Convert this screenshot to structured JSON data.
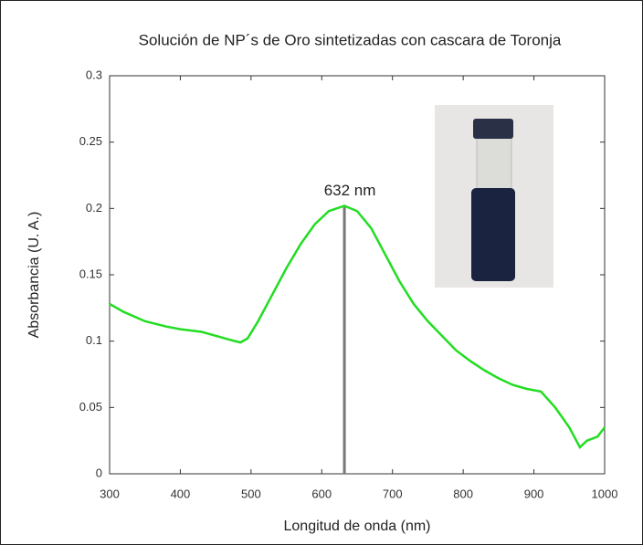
{
  "chart_data": {
    "type": "line",
    "title": "Solución de NP´s de Oro sintetizadas con cascara de Toronja",
    "x_label": "Longitud de onda (nm)",
    "y_label": "Absorbancia (U. A.)",
    "x": [
      300,
      320,
      350,
      380,
      400,
      430,
      450,
      470,
      485,
      495,
      510,
      530,
      550,
      570,
      590,
      610,
      632,
      650,
      670,
      690,
      710,
      730,
      750,
      770,
      790,
      810,
      830,
      850,
      870,
      890,
      910,
      930,
      950,
      965,
      975,
      990,
      1000
    ],
    "values": [
      0.128,
      0.122,
      0.115,
      0.111,
      0.109,
      0.107,
      0.104,
      0.101,
      0.099,
      0.102,
      0.115,
      0.135,
      0.155,
      0.173,
      0.188,
      0.198,
      0.202,
      0.198,
      0.185,
      0.165,
      0.145,
      0.128,
      0.115,
      0.104,
      0.093,
      0.085,
      0.078,
      0.072,
      0.067,
      0.064,
      0.062,
      0.05,
      0.035,
      0.02,
      0.025,
      0.028,
      0.035
    ],
    "color": "#22dd22",
    "xlim": [
      300,
      1000
    ],
    "xticks": [
      300,
      400,
      500,
      600,
      700,
      800,
      900,
      1000
    ],
    "ylim": [
      0,
      0.3
    ],
    "yticks": [
      0,
      0.05,
      0.1,
      0.15,
      0.2,
      0.25,
      0.3
    ],
    "annotation": {
      "label": "632 nm",
      "x": 632,
      "y": 0.202
    }
  }
}
